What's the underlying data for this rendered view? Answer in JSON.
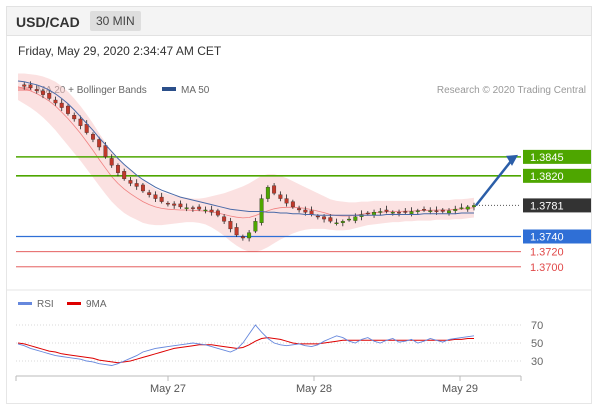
{
  "header": {
    "pair": "USD/CAD",
    "timeframe": "30 MIN"
  },
  "datetime": "Friday, May 29, 2020 2:34:47 AM CET",
  "legend": {
    "ma_bb": "MA 20 + Bollinger Bands",
    "ma50": "MA 50",
    "credit": "Research © 2020 Trading Central",
    "rsi": "RSI",
    "rsi_ma": "9MA"
  },
  "colors": {
    "resistance": "#4ea600",
    "current": "#333333",
    "support_blue": "#2f6fd6",
    "support_red": "#e04848",
    "bollinger": "#f8c8c8",
    "ma50": "#4a6aa8",
    "arrow": "#2b5ea8",
    "up_candle": "#4ea600",
    "down_candle": "#c0392b"
  },
  "chart_data": {
    "type": "candlestick",
    "x_ticks": [
      "May 27",
      "May 28",
      "May 29"
    ],
    "price_ylim": [
      1.368,
      1.392
    ],
    "levels": [
      {
        "value": 1.3845,
        "label": "1.3845",
        "kind": "resistance"
      },
      {
        "value": 1.382,
        "label": "1.3820",
        "kind": "resistance"
      },
      {
        "value": 1.3781,
        "label": "1.3781",
        "kind": "current"
      },
      {
        "value": 1.374,
        "label": "1.3740",
        "kind": "support"
      },
      {
        "value": 1.372,
        "label": "1.3720",
        "kind": "support-minor"
      },
      {
        "value": 1.37,
        "label": "1.3700",
        "kind": "support-minor"
      }
    ],
    "close_series": [
      1.394,
      1.3938,
      1.3936,
      1.3932,
      1.3927,
      1.3922,
      1.3916,
      1.391,
      1.3902,
      1.3895,
      1.3886,
      1.3877,
      1.3868,
      1.3858,
      1.3845,
      1.3834,
      1.3824,
      1.3816,
      1.381,
      1.3806,
      1.38,
      1.3795,
      1.379,
      1.3786,
      1.3783,
      1.3781,
      1.3779,
      1.3778,
      1.3777,
      1.3776,
      1.3775,
      1.3772,
      1.3768,
      1.376,
      1.375,
      1.3742,
      1.3738,
      1.3745,
      1.376,
      1.379,
      1.3805,
      1.3797,
      1.379,
      1.3784,
      1.3779,
      1.3775,
      1.3772,
      1.3769,
      1.3766,
      1.3763,
      1.376,
      1.3758,
      1.376,
      1.3763,
      1.3766,
      1.3769,
      1.377,
      1.3772,
      1.3773,
      1.3773,
      1.3772,
      1.3771,
      1.3772,
      1.3773,
      1.3774,
      1.3775,
      1.3774,
      1.3773,
      1.3773,
      1.3774,
      1.3776,
      1.3778,
      1.3779,
      1.3781
    ],
    "bb_upper": [
      1.3955,
      1.3955,
      1.3954,
      1.3953,
      1.3951,
      1.3948,
      1.3944,
      1.3938,
      1.3931,
      1.3922,
      1.3912,
      1.3901,
      1.3889,
      1.3876,
      1.3864,
      1.3852,
      1.3842,
      1.3834,
      1.3827,
      1.382,
      1.3814,
      1.3808,
      1.3803,
      1.3799,
      1.3796,
      1.3794,
      1.3792,
      1.3791,
      1.379,
      1.379,
      1.3791,
      1.3793,
      1.3795,
      1.3797,
      1.38,
      1.3803,
      1.3806,
      1.381,
      1.3815,
      1.382,
      1.3822,
      1.3822,
      1.382,
      1.3817,
      1.3813,
      1.3809,
      1.3805,
      1.3801,
      1.3797,
      1.3793,
      1.3789,
      1.3787,
      1.3786,
      1.3785,
      1.3785,
      1.3786,
      1.3786,
      1.3787,
      1.3787,
      1.3787,
      1.3787,
      1.3787,
      1.3787,
      1.3787,
      1.3787,
      1.3788,
      1.3788,
      1.3788,
      1.3788,
      1.3788,
      1.3789,
      1.3789,
      1.379,
      1.3791
    ],
    "bb_lower": [
      1.392,
      1.3915,
      1.391,
      1.3904,
      1.3897,
      1.3889,
      1.388,
      1.387,
      1.386,
      1.385,
      1.384,
      1.3829,
      1.3818,
      1.3807,
      1.3796,
      1.3786,
      1.3778,
      1.3771,
      1.3766,
      1.3762,
      1.3758,
      1.3756,
      1.3755,
      1.3755,
      1.3756,
      1.3757,
      1.3758,
      1.3759,
      1.3759,
      1.3758,
      1.3756,
      1.3752,
      1.3747,
      1.3741,
      1.3734,
      1.3728,
      1.3723,
      1.372,
      1.372,
      1.3722,
      1.3726,
      1.3731,
      1.3736,
      1.374,
      1.3744,
      1.3747,
      1.3749,
      1.375,
      1.375,
      1.375,
      1.3749,
      1.3748,
      1.3748,
      1.3749,
      1.3751,
      1.3753,
      1.3755,
      1.3756,
      1.3757,
      1.3758,
      1.3759,
      1.3759,
      1.376,
      1.376,
      1.3761,
      1.3761,
      1.3761,
      1.3762,
      1.3762,
      1.3762,
      1.3763,
      1.3763,
      1.3764,
      1.3765
    ],
    "ma50": [
      1.3945,
      1.3944,
      1.3942,
      1.394,
      1.3937,
      1.3933,
      1.3928,
      1.3922,
      1.3915,
      1.3907,
      1.3898,
      1.3889,
      1.388,
      1.387,
      1.3861,
      1.3852,
      1.3843,
      1.3835,
      1.3828,
      1.3821,
      1.3815,
      1.381,
      1.3805,
      1.3801,
      1.3798,
      1.3795,
      1.3792,
      1.379,
      1.3788,
      1.3786,
      1.3784,
      1.3782,
      1.378,
      1.3778,
      1.3776,
      1.3775,
      1.3774,
      1.3773,
      1.3773,
      1.3773,
      1.3772,
      1.3772,
      1.3771,
      1.3771,
      1.377,
      1.377,
      1.3769,
      1.3769,
      1.3768,
      1.3768,
      1.3768,
      1.3768,
      1.3768,
      1.3768,
      1.3768,
      1.3768,
      1.3768,
      1.3768,
      1.3768,
      1.3769,
      1.3769,
      1.3769,
      1.3769,
      1.3769,
      1.3769,
      1.377,
      1.377,
      1.377,
      1.377,
      1.377,
      1.377,
      1.3771,
      1.3771,
      1.3771
    ],
    "rsi_ylim": [
      20,
      80
    ],
    "rsi_ticks": [
      70,
      50,
      30
    ],
    "rsi": [
      49,
      47,
      44,
      42,
      40,
      38,
      36,
      35,
      34,
      33,
      32,
      30,
      29,
      27,
      26,
      25,
      27,
      30,
      33,
      36,
      40,
      42,
      44,
      45,
      46,
      47,
      48,
      49,
      50,
      49,
      48,
      46,
      44,
      42,
      40,
      43,
      50,
      60,
      70,
      62,
      55,
      50,
      48,
      47,
      48,
      49,
      47,
      46,
      48,
      52,
      55,
      58,
      56,
      52,
      50,
      54,
      56,
      52,
      50,
      53,
      55,
      51,
      52,
      54,
      50,
      52,
      55,
      53,
      51,
      54,
      55,
      56,
      57,
      58
    ],
    "rsi_ma": [
      50,
      49,
      47,
      45,
      43,
      41,
      40,
      38,
      37,
      36,
      35,
      34,
      33,
      31,
      30,
      29,
      28,
      29,
      30,
      32,
      34,
      36,
      38,
      40,
      42,
      44,
      45,
      46,
      47,
      48,
      48,
      48,
      47,
      46,
      45,
      44,
      45,
      48,
      52,
      55,
      56,
      55,
      54,
      52,
      50,
      49,
      49,
      49,
      49,
      50,
      51,
      52,
      53,
      53,
      53,
      53,
      53,
      53,
      53,
      53,
      53,
      53,
      53,
      53,
      53,
      53,
      53,
      53,
      53,
      53,
      54,
      54,
      55,
      55
    ],
    "arrow": {
      "from_value": 1.3781,
      "to_value": 1.3845
    }
  }
}
